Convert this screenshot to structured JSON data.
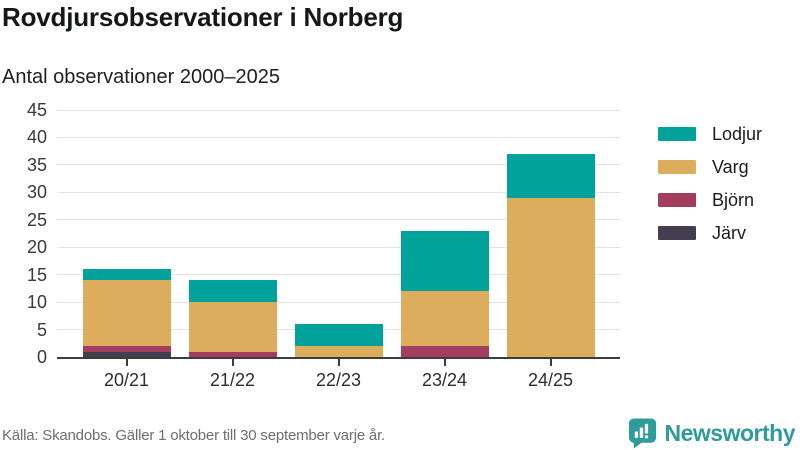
{
  "header": {
    "title": "Rovdjursobservationer i Norberg",
    "subtitle": "Antal observationer 2000–2025"
  },
  "footer": {
    "source": "Källa: Skandobs. Gäller 1 oktober till 30 september varje år."
  },
  "logo": {
    "name": "Newsworthy",
    "color": "#2f9b9b",
    "icon": "speech-bubble-bar-chart-icon"
  },
  "colors": {
    "axis": "#3d3d3d",
    "gridline": "#e4e4e4",
    "text_dark": "#15181b",
    "text_muted": "#6e6e6e"
  },
  "chart_data": {
    "type": "bar",
    "stacked": true,
    "title": "Rovdjursobservationer i Norberg",
    "subtitle": "Antal observationer 2000–2025",
    "categories": [
      "20/21",
      "21/22",
      "22/23",
      "23/24",
      "24/25"
    ],
    "series": [
      {
        "name": "Lodjur",
        "color": "#00a29a",
        "values": [
          2,
          4,
          4,
          11,
          8
        ]
      },
      {
        "name": "Varg",
        "color": "#dcad5d",
        "values": [
          12,
          9,
          2,
          10,
          29
        ]
      },
      {
        "name": "Björn",
        "color": "#a43e5e",
        "values": [
          1,
          1,
          0,
          2,
          0
        ]
      },
      {
        "name": "Järv",
        "color": "#433f50",
        "values": [
          1,
          0,
          0,
          0,
          0
        ]
      }
    ],
    "stack_order_bottom_to_top": [
      "Järv",
      "Björn",
      "Varg",
      "Lodjur"
    ],
    "totals": [
      16,
      14,
      6,
      23,
      37
    ],
    "xlabel": "",
    "ylabel": "",
    "ylim": [
      0,
      45
    ],
    "ytick_step": 5,
    "yticks": [
      0,
      5,
      10,
      15,
      20,
      25,
      30,
      35,
      40,
      45
    ],
    "grid": true,
    "legend_position": "right"
  }
}
